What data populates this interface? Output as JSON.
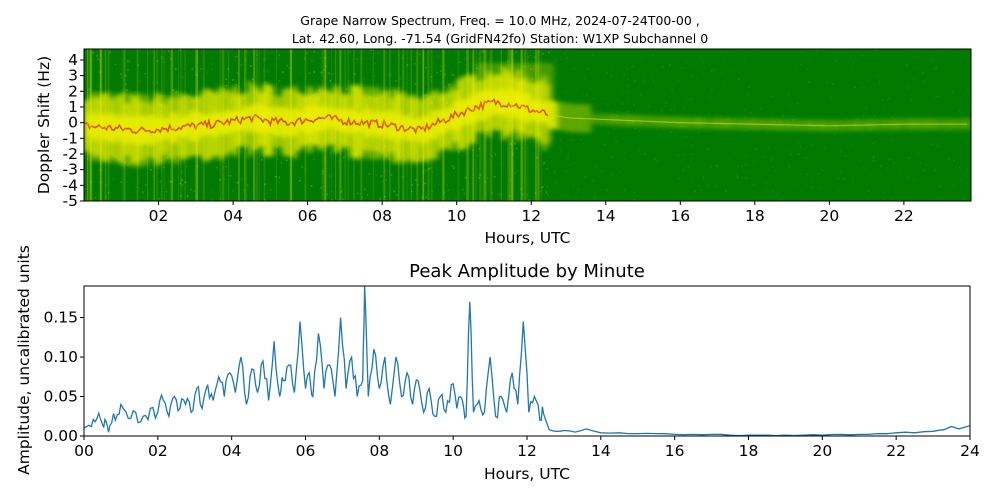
{
  "chart_data": [
    {
      "type": "heatmap",
      "title_line1": "Grape Narrow Spectrum, Freq. = 10.0 MHz, 2024-07-24T00-00 ,",
      "title_line2": "Lat.  42.60, Long. -71.54 (GridFN42fo) Station: W1XP Subchannel 0",
      "xlabel": "Hours, UTC",
      "ylabel": "Doppler Shift (Hz)",
      "xlim": [
        0,
        23.8
      ],
      "ylim": [
        -5,
        4.7
      ],
      "x_ticks": [
        {
          "value": 2,
          "label": "02"
        },
        {
          "value": 4,
          "label": "04"
        },
        {
          "value": 6,
          "label": "06"
        },
        {
          "value": 8,
          "label": "08"
        },
        {
          "value": 10,
          "label": "10"
        },
        {
          "value": 12,
          "label": "12"
        },
        {
          "value": 14,
          "label": "14"
        },
        {
          "value": 16,
          "label": "16"
        },
        {
          "value": 18,
          "label": "18"
        },
        {
          "value": 20,
          "label": "20"
        },
        {
          "value": 22,
          "label": "22"
        }
      ],
      "y_ticks": [
        {
          "value": 4,
          "label": "4"
        },
        {
          "value": 3,
          "label": "3"
        },
        {
          "value": 2,
          "label": "2"
        },
        {
          "value": 1,
          "label": "1"
        },
        {
          "value": 0,
          "label": "0"
        },
        {
          "value": -1,
          "label": "-1"
        },
        {
          "value": -2,
          "label": "-2"
        },
        {
          "value": -3,
          "label": "-3"
        },
        {
          "value": -4,
          "label": "-4"
        },
        {
          "value": -5,
          "label": "-5"
        }
      ],
      "trace_hours": [
        0,
        0.5,
        1,
        1.5,
        2,
        2.5,
        3,
        3.5,
        4,
        4.5,
        5,
        5.5,
        6,
        6.5,
        7,
        7.5,
        8,
        8.5,
        9,
        9.5,
        10,
        10.5,
        11,
        11.5,
        12,
        12.5,
        13,
        14,
        16,
        18,
        20,
        22,
        23.8
      ],
      "trace_doppler_hz": [
        -0.2,
        -0.3,
        -0.4,
        -0.5,
        -0.4,
        -0.3,
        -0.2,
        -0.1,
        0.1,
        0.3,
        0.1,
        0,
        0.2,
        0.3,
        0.1,
        0,
        -0.1,
        -0.3,
        -0.5,
        0,
        0.5,
        1,
        1.3,
        1.2,
        0.8,
        0.5,
        0.3,
        0.2,
        0,
        -0.1,
        -0.2,
        -0.1,
        -0.1
      ],
      "colors": [
        "#007a00",
        "#f2f200",
        "#e02010"
      ]
    },
    {
      "type": "line",
      "title": "Peak Amplitude by Minute",
      "xlabel": "Hours, UTC",
      "ylabel": "Amplitude, uncalibrated units",
      "xlim": [
        0,
        24
      ],
      "ylim": [
        0,
        0.19
      ],
      "x_ticks": [
        {
          "value": 0,
          "label": "00"
        },
        {
          "value": 2,
          "label": "02"
        },
        {
          "value": 4,
          "label": "04"
        },
        {
          "value": 6,
          "label": "06"
        },
        {
          "value": 8,
          "label": "08"
        },
        {
          "value": 10,
          "label": "10"
        },
        {
          "value": 12,
          "label": "12"
        },
        {
          "value": 14,
          "label": "14"
        },
        {
          "value": 16,
          "label": "16"
        },
        {
          "value": 18,
          "label": "18"
        },
        {
          "value": 20,
          "label": "20"
        },
        {
          "value": 22,
          "label": "22"
        },
        {
          "value": 24,
          "label": "24"
        }
      ],
      "y_ticks": [
        {
          "value": 0,
          "label": "0.00"
        },
        {
          "value": 0.05,
          "label": "0.05"
        },
        {
          "value": 0.1,
          "label": "0.10"
        },
        {
          "value": 0.15,
          "label": "0.15"
        }
      ],
      "color": "#1f77b4",
      "series": [
        {
          "x": [
            0,
            0.2,
            0.35,
            0.5,
            0.6,
            0.7,
            0.85,
            1.0,
            1.2,
            1.4,
            1.6,
            1.8,
            2.0,
            2.15,
            2.3,
            2.45,
            2.6,
            2.75,
            2.9,
            3.05,
            3.2,
            3.35,
            3.5,
            3.65,
            3.8,
            3.95,
            4.1,
            4.25,
            4.4,
            4.55,
            4.7,
            4.85,
            5.0,
            5.15,
            5.3,
            5.4,
            5.55,
            5.7,
            5.85,
            6.0,
            6.1,
            6.2,
            6.35,
            6.5,
            6.65,
            6.8,
            6.95,
            7.1,
            7.25,
            7.4,
            7.55,
            7.6,
            7.7,
            7.85,
            8.0,
            8.15,
            8.3,
            8.45,
            8.6,
            8.75,
            8.9,
            9.05,
            9.2,
            9.35,
            9.5,
            9.65,
            9.8,
            9.95,
            10.1,
            10.25,
            10.35,
            10.45,
            10.55,
            10.7,
            10.85,
            11.0,
            11.15,
            11.3,
            11.45,
            11.6,
            11.75,
            11.9,
            12.05,
            12.2,
            12.35,
            12.45,
            12.6,
            12.8,
            13.0,
            13.3,
            13.6,
            14.0,
            14.5,
            15.0,
            15.5,
            16.0,
            16.5,
            17.0,
            17.5,
            18.0,
            18.5,
            19.0,
            19.5,
            20.0,
            20.5,
            21.0,
            21.5,
            22.0,
            22.5,
            23.0,
            23.3,
            23.5,
            23.7,
            24.0
          ],
          "y": [
            0.01,
            0.012,
            0.022,
            0.015,
            0.018,
            0.013,
            0.02,
            0.04,
            0.022,
            0.03,
            0.025,
            0.035,
            0.03,
            0.045,
            0.025,
            0.05,
            0.035,
            0.04,
            0.03,
            0.06,
            0.035,
            0.065,
            0.045,
            0.075,
            0.05,
            0.08,
            0.055,
            0.1,
            0.04,
            0.085,
            0.055,
            0.095,
            0.045,
            0.12,
            0.05,
            0.07,
            0.09,
            0.055,
            0.145,
            0.06,
            0.08,
            0.05,
            0.13,
            0.06,
            0.09,
            0.05,
            0.15,
            0.06,
            0.1,
            0.05,
            0.07,
            0.19,
            0.05,
            0.11,
            0.06,
            0.1,
            0.04,
            0.1,
            0.05,
            0.08,
            0.04,
            0.07,
            0.03,
            0.06,
            0.025,
            0.05,
            0.03,
            0.065,
            0.035,
            0.045,
            0.025,
            0.17,
            0.03,
            0.045,
            0.03,
            0.1,
            0.025,
            0.05,
            0.03,
            0.08,
            0.04,
            0.145,
            0.03,
            0.05,
            0.02,
            0.028,
            0.008,
            0.006,
            0.007,
            0.005,
            0.009,
            0.004,
            0.004,
            0.003,
            0.003,
            0.002,
            0.002,
            0.002,
            0.001,
            0.001,
            0.001,
            0.001,
            0.001,
            0.001,
            0.002,
            0.002,
            0.003,
            0.004,
            0.004,
            0.006,
            0.008,
            0.012,
            0.009,
            0.013
          ]
        }
      ]
    }
  ]
}
